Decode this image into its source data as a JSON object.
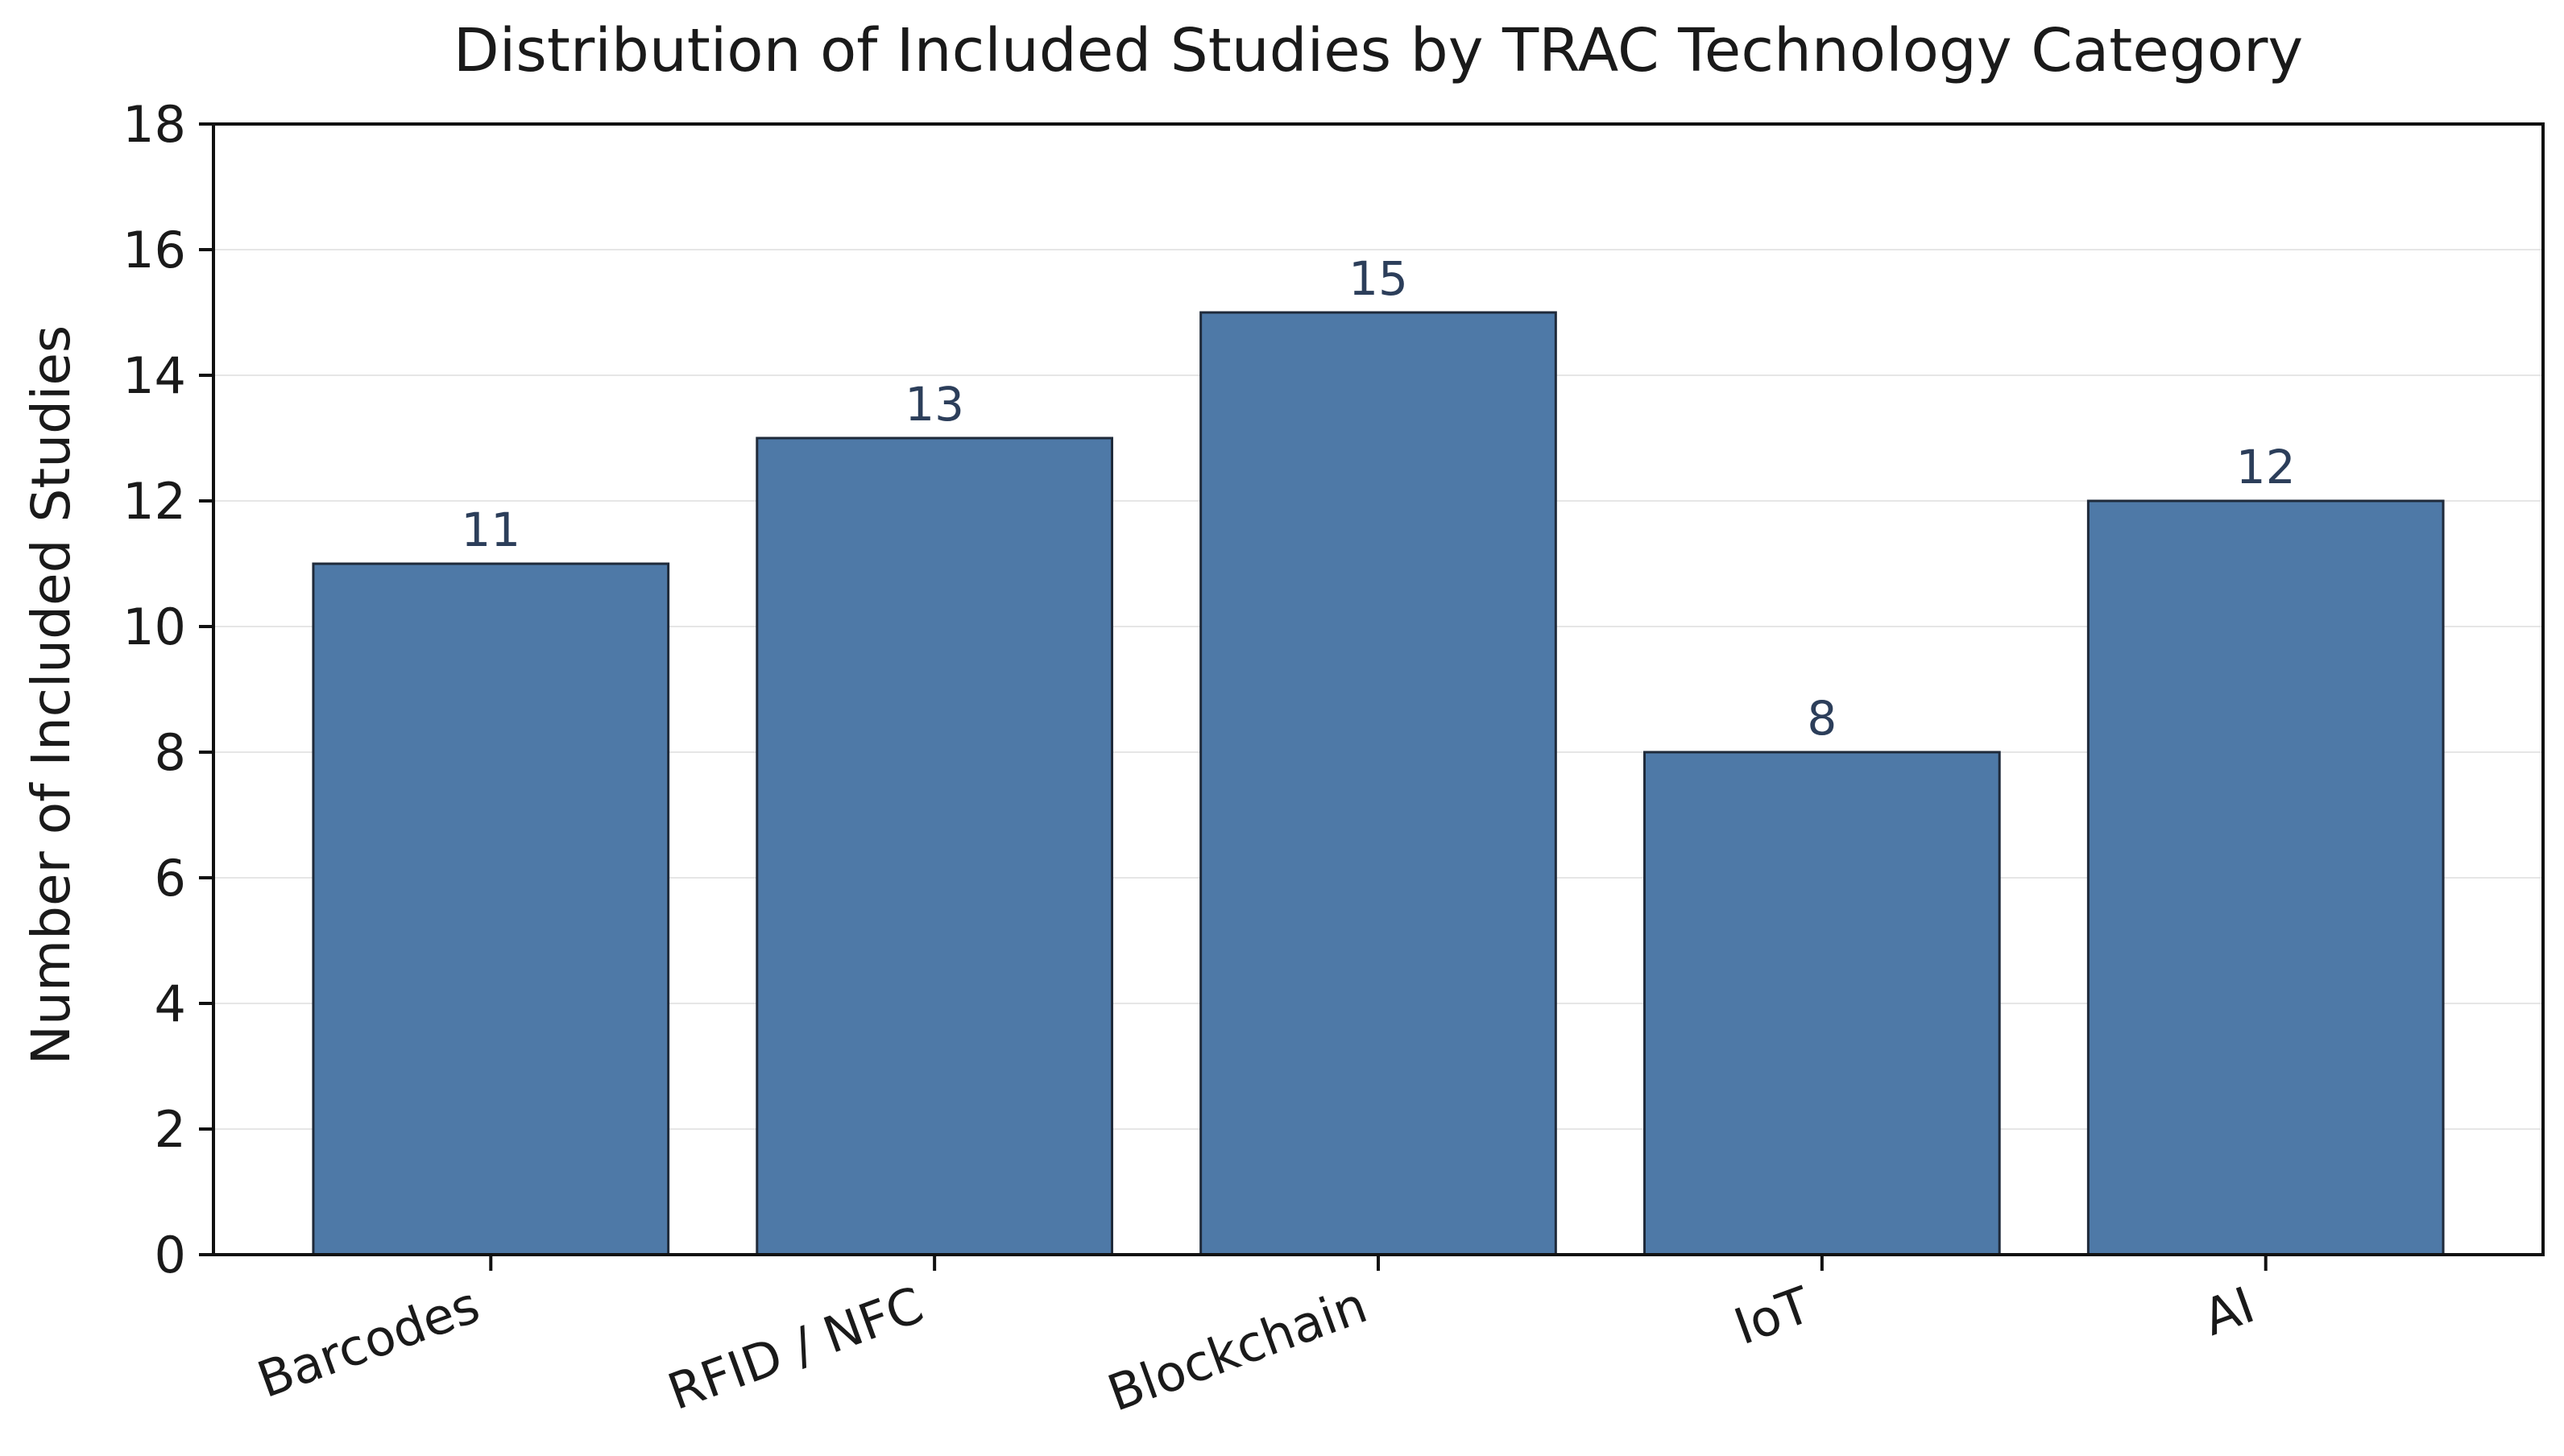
{
  "chart_data": {
    "type": "bar",
    "title": "Distribution of Included Studies by TRAC Technology Category",
    "xlabel": "",
    "ylabel": "Number of Included Studies",
    "categories": [
      "Barcodes",
      "RFID / NFC",
      "Blockchain",
      "IoT",
      "AI"
    ],
    "values": [
      11,
      13,
      15,
      8,
      12
    ],
    "value_labels": [
      "11",
      "13",
      "15",
      "8",
      "12"
    ],
    "ylim": [
      0,
      18
    ],
    "yticks": [
      0,
      2,
      4,
      6,
      8,
      10,
      12,
      14,
      16,
      18
    ],
    "ytick_labels": [
      "0",
      "2",
      "4",
      "6",
      "8",
      "10",
      "12",
      "14",
      "16",
      "18"
    ],
    "grid": "horizontal",
    "legend": "none",
    "colors": {
      "bar_fill": "#4e79a7",
      "bar_edge": "#1f2a3a",
      "value_label": "#2c3e5a",
      "grid": "#e6e6e6"
    }
  }
}
